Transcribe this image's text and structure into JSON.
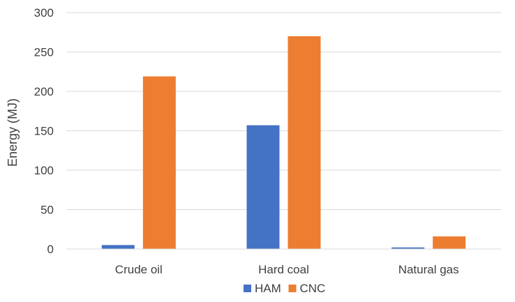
{
  "chart_data": {
    "type": "bar",
    "title": "",
    "xlabel": "",
    "ylabel": "Energy (MJ)",
    "categories": [
      "Crude oil",
      "Hard coal",
      "Natural gas"
    ],
    "series": [
      {
        "name": "HAM",
        "color": "#4472C4",
        "values": [
          5,
          157,
          2
        ]
      },
      {
        "name": "CNC",
        "color": "#ED7D31",
        "values": [
          219,
          270,
          16
        ]
      }
    ],
    "ylim": [
      0,
      300
    ],
    "yticks": [
      0,
      50,
      100,
      150,
      200,
      250,
      300
    ],
    "grid": true,
    "legend_position": "bottom"
  }
}
